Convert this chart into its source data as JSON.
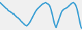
{
  "values": [
    3.6,
    3.5,
    3.4,
    3.3,
    3.2,
    3.1,
    3.0,
    2.9,
    2.85,
    2.7,
    2.6,
    2.55,
    2.5,
    2.4,
    2.35,
    2.2,
    2.3,
    2.1,
    2.0,
    1.9,
    1.8,
    1.75,
    1.65,
    1.55,
    1.4,
    1.3,
    1.2,
    1.1,
    1.0,
    0.9,
    0.85,
    0.8,
    0.9,
    1.0,
    1.15,
    1.3,
    1.5,
    1.7,
    1.9,
    2.1,
    2.3,
    2.5,
    2.65,
    2.8,
    2.9,
    3.0,
    3.1,
    3.2,
    3.3,
    3.4,
    3.45,
    3.5,
    3.55,
    3.6,
    3.5,
    3.45,
    3.4,
    3.3,
    3.1,
    2.8,
    2.4,
    2.0,
    1.5,
    1.1,
    0.8,
    0.6,
    0.9,
    1.2,
    1.5,
    1.8,
    2.1,
    2.4,
    2.6,
    2.7,
    2.8,
    2.85,
    2.9,
    2.95,
    3.0,
    3.1,
    3.2,
    3.3,
    3.4,
    3.5,
    3.55,
    3.6,
    3.5,
    3.4,
    3.2,
    2.9,
    2.5,
    2.0,
    1.5,
    1.0,
    0.6,
    0.5
  ],
  "line_color": "#3a9fd4",
  "line_width": 1.5,
  "bg_color": "#f0f0f0",
  "ylim_min": 0.3,
  "ylim_max": 3.9
}
